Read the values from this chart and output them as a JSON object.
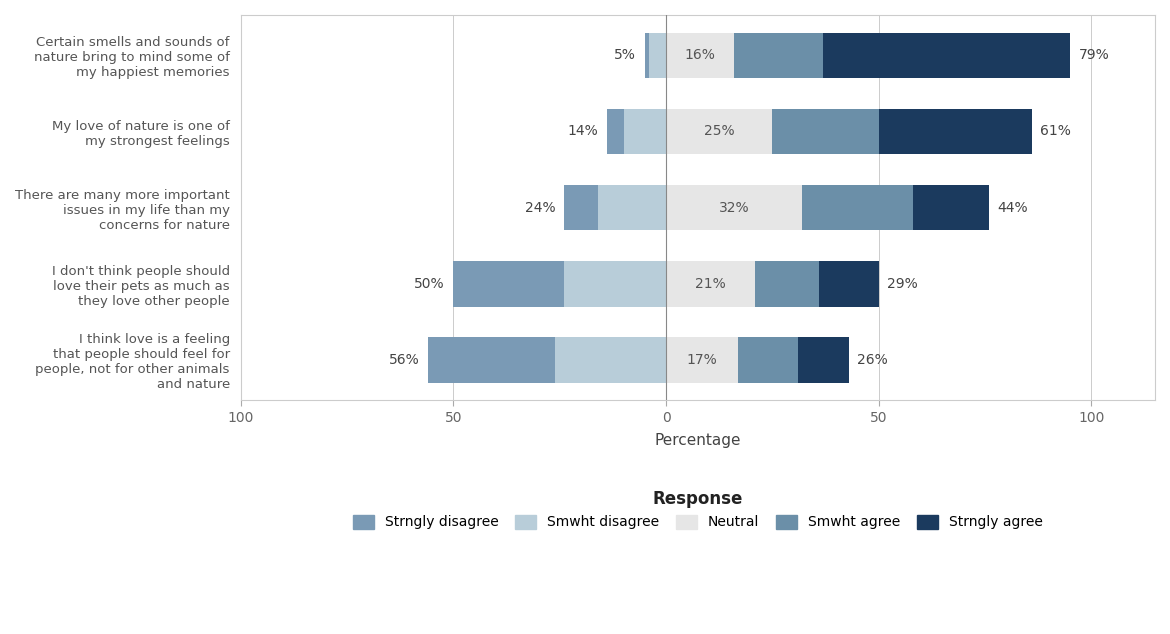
{
  "categories": [
    "Certain smells and sounds of\nnature bring to mind some of\nmy happiest memories",
    "My love of nature is one of\nmy strongest feelings",
    "There are many more important\nissues in my life than my\nconcerns for nature",
    "I don't think people should\nlove their pets as much as\nthey love other people",
    "I think love is a feeling\nthat people should feel for\npeople, not for other animals\nand nature"
  ],
  "strongly_disagree": [
    1,
    4,
    8,
    26,
    30
  ],
  "smwht_disagree": [
    4,
    10,
    16,
    24,
    26
  ],
  "neutral": [
    16,
    25,
    32,
    21,
    17
  ],
  "smwht_agree": [
    21,
    25,
    26,
    15,
    14
  ],
  "strongly_agree": [
    58,
    36,
    18,
    14,
    12
  ],
  "left_pct": [
    "5%",
    "14%",
    "24%",
    "50%",
    "56%"
  ],
  "right_pct": [
    "79%",
    "61%",
    "44%",
    "29%",
    "26%"
  ],
  "neutral_label": [
    "16%",
    "25%",
    "32%",
    "21%",
    "17%"
  ],
  "colors": {
    "strongly_disagree": "#7a9ab5",
    "smwht_disagree": "#b8cdd9",
    "neutral": "#e6e6e6",
    "smwht_agree": "#6b8fa8",
    "strongly_agree": "#1b3a5e"
  },
  "legend_labels": [
    "Strngly disagree",
    "Smwht disagree",
    "Neutral",
    "Smwht agree",
    "Strngly agree"
  ],
  "xlabel": "Percentage",
  "legend_title": "Response",
  "xlim": [
    -100,
    115
  ],
  "xticks": [
    -100,
    -50,
    0,
    50,
    100
  ],
  "xticklabels": [
    "100",
    "50",
    "0",
    "50",
    "100"
  ],
  "background_color": "#ffffff",
  "plot_bg_color": "#ffffff"
}
